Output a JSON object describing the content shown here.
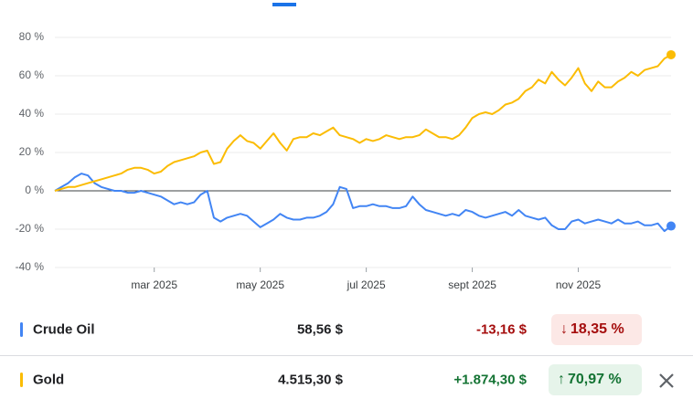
{
  "chart_data": {
    "type": "line",
    "categories": [
      null,
      null,
      null,
      null,
      null,
      null,
      null,
      null,
      null,
      null,
      null,
      null,
      null,
      null,
      null,
      "mar 2025",
      null,
      null,
      null,
      null,
      null,
      null,
      null,
      null,
      null,
      null,
      null,
      null,
      null,
      null,
      null,
      "may 2025",
      null,
      null,
      null,
      null,
      null,
      null,
      null,
      null,
      null,
      null,
      null,
      null,
      null,
      null,
      null,
      "jul 2025",
      null,
      null,
      null,
      null,
      null,
      null,
      null,
      null,
      null,
      null,
      null,
      null,
      null,
      null,
      null,
      "sept 2025",
      null,
      null,
      null,
      null,
      null,
      null,
      null,
      null,
      null,
      null,
      null,
      null,
      null,
      null,
      null,
      "nov 2025",
      null,
      null,
      null,
      null,
      null,
      null,
      null,
      null,
      null,
      null,
      null,
      null,
      null,
      null
    ],
    "series": [
      {
        "name": "Crude Oil",
        "color": "#4285f4",
        "values": [
          0,
          2,
          4,
          7,
          9,
          8,
          4,
          2,
          1,
          0,
          0,
          -1,
          -1,
          0,
          -1,
          -2,
          -3,
          -5,
          -7,
          -6,
          -7,
          -6,
          -2,
          0,
          -14,
          -16,
          -14,
          -13,
          -12,
          -13,
          -16,
          -19,
          -17,
          -15,
          -12,
          -14,
          -15,
          -15,
          -14,
          -14,
          -13,
          -11,
          -7,
          2,
          1,
          -9,
          -8,
          -8,
          -7,
          -8,
          -8,
          -9,
          -9,
          -8,
          -3,
          -7,
          -10,
          -11,
          -12,
          -13,
          -12,
          -13,
          -10,
          -11,
          -13,
          -14,
          -13,
          -12,
          -11,
          -13,
          -10,
          -13,
          -14,
          -15,
          -14,
          -18,
          -20,
          -20,
          -16,
          -15,
          -17,
          -16,
          -15,
          -16,
          -17,
          -15,
          -17,
          -17,
          -16,
          -18,
          -18,
          -17,
          -21,
          -18.35
        ]
      },
      {
        "name": "Gold",
        "color": "#fbbc04",
        "values": [
          0,
          1,
          2,
          2,
          3,
          4,
          5,
          6,
          7,
          8,
          9,
          11,
          12,
          12,
          11,
          9,
          10,
          13,
          15,
          16,
          17,
          18,
          20,
          21,
          14,
          15,
          22,
          26,
          29,
          26,
          25,
          22,
          26,
          30,
          25,
          21,
          27,
          28,
          28,
          30,
          29,
          31,
          33,
          29,
          28,
          27,
          25,
          27,
          26,
          27,
          29,
          28,
          27,
          28,
          28,
          29,
          32,
          30,
          28,
          28,
          27,
          29,
          33,
          38,
          40,
          41,
          40,
          42,
          45,
          46,
          48,
          52,
          54,
          58,
          56,
          62,
          58,
          55,
          59,
          64,
          56,
          52,
          57,
          54,
          54,
          57,
          59,
          62,
          60,
          63,
          64,
          65,
          69,
          70.97
        ]
      }
    ],
    "ylim": [
      -40,
      80
    ],
    "yticks": [
      {
        "value": -40,
        "label": "-40 %"
      },
      {
        "value": -20,
        "label": "-20 %"
      },
      {
        "value": 0,
        "label": "0 %"
      },
      {
        "value": 20,
        "label": "20 %"
      },
      {
        "value": 40,
        "label": "40 %"
      },
      {
        "value": 60,
        "label": "60 %"
      },
      {
        "value": 80,
        "label": "80 %"
      }
    ],
    "grid": true
  },
  "comparison": {
    "rows": [
      {
        "price": "58,56 $",
        "change": "-13,16 $",
        "percent": "18,35 %"
      },
      {
        "price": "4.515,30 $",
        "change": "+1.874,30 $",
        "percent": "70,97 %"
      }
    ]
  }
}
